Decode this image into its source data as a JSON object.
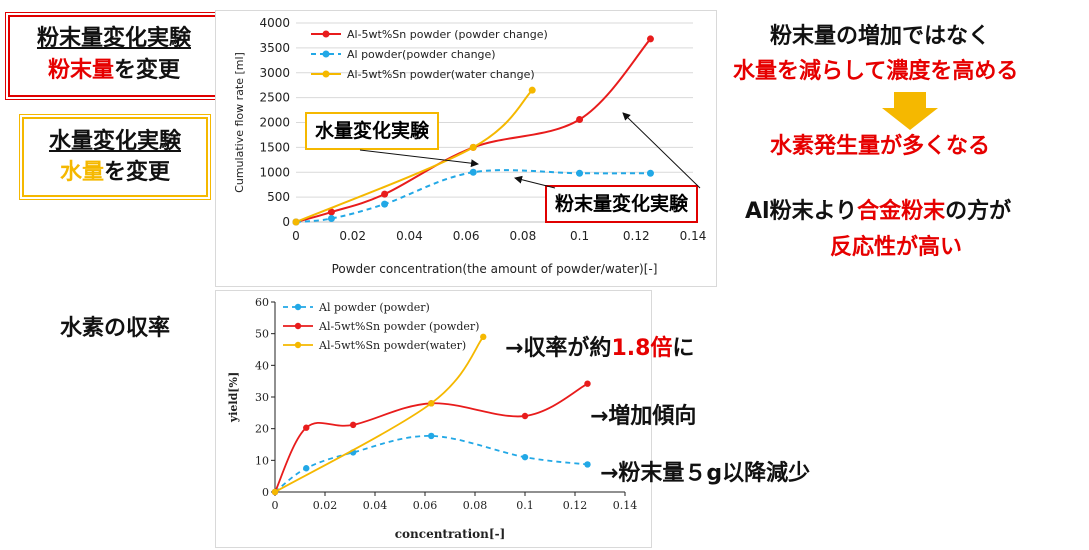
{
  "left_labels": {
    "powder_box": {
      "title": "粉末量変化実験",
      "sub_em": "粉末量",
      "sub_rest": "を変更"
    },
    "water_box": {
      "title": "水量変化実験",
      "sub_em": "水量",
      "sub_rest": "を変更"
    },
    "yield_title": "水素の収率"
  },
  "right_notes": {
    "line1": "粉末量の増加ではなく",
    "line2": "水量を減らして濃度を高める",
    "line3": "水素発生量が多くなる",
    "line4_a": "Al粉末より",
    "line4_em": "合金粉末",
    "line4_b": "の方が",
    "line5": "反応性が高い",
    "arrow_color": "#f5b800"
  },
  "chart_callouts": {
    "water": "水量変化実験",
    "powder": "粉末量変化実験"
  },
  "yield_notes": {
    "n1_a": "→収率が約",
    "n1_em": "1.8倍",
    "n1_b": "に",
    "n2": "→増加傾向",
    "n3": "→粉末量５g以降減少"
  },
  "chart_data": [
    {
      "type": "line",
      "xlabel": "Powder concentration(the amount of powder/water)[-]",
      "ylabel": "Cumulative flow rate [ml]",
      "xlim": [
        0,
        0.14
      ],
      "ylim": [
        0,
        4000
      ],
      "xticks": [
        "0",
        "0.02",
        "0.04",
        "0.06",
        "0.08",
        "0.1",
        "0.12",
        "0.14"
      ],
      "yticks": [
        "0",
        "500",
        "1000",
        "1500",
        "2000",
        "2500",
        "3000",
        "3500",
        "4000"
      ],
      "grid": true,
      "legend": "top-left",
      "series": [
        {
          "name": "Al-5wt%Sn powder (powder change)",
          "color": "#e81c1c",
          "dash": false,
          "x": [
            0,
            0.0125,
            0.03125,
            0.0625,
            0.1,
            0.125
          ],
          "y": [
            0,
            200,
            560,
            1500,
            2060,
            3680
          ]
        },
        {
          "name": "Al powder(powder change)",
          "color": "#22a8e6",
          "dash": true,
          "x": [
            0,
            0.0125,
            0.03125,
            0.0625,
            0.1,
            0.125
          ],
          "y": [
            0,
            70,
            360,
            1000,
            980,
            980
          ]
        },
        {
          "name": "Al-5wt%Sn powder(water change)",
          "color": "#f5b800",
          "dash": false,
          "x": [
            0,
            0.0625,
            0.0833
          ],
          "y": [
            0,
            1500,
            2650
          ]
        }
      ]
    },
    {
      "type": "line",
      "xlabel": "concentration[-]",
      "ylabel": "yield[%]",
      "xlim": [
        0,
        0.14
      ],
      "ylim": [
        0,
        60
      ],
      "xticks": [
        "0",
        "0.02",
        "0.04",
        "0.06",
        "0.08",
        "0.1",
        "0.12",
        "0.14"
      ],
      "yticks": [
        "0",
        "10",
        "20",
        "30",
        "40",
        "50",
        "60"
      ],
      "grid": false,
      "legend": "top-left",
      "series": [
        {
          "name": "Al powder (powder)",
          "color": "#22a8e6",
          "dash": true,
          "x": [
            0,
            0.0125,
            0.03125,
            0.0625,
            0.1,
            0.125
          ],
          "y": [
            0,
            7.5,
            12.5,
            17.7,
            11,
            8.7
          ]
        },
        {
          "name": "Al-5wt%Sn powder (powder)",
          "color": "#e81c1c",
          "dash": false,
          "x": [
            0,
            0.0125,
            0.03125,
            0.0625,
            0.1,
            0.125
          ],
          "y": [
            0,
            20.3,
            21.2,
            28,
            24,
            34.2
          ]
        },
        {
          "name": "Al-5wt%Sn powder(water)",
          "color": "#f5b800",
          "dash": false,
          "x": [
            0,
            0.0625,
            0.0833
          ],
          "y": [
            0,
            28,
            49
          ]
        }
      ]
    }
  ]
}
